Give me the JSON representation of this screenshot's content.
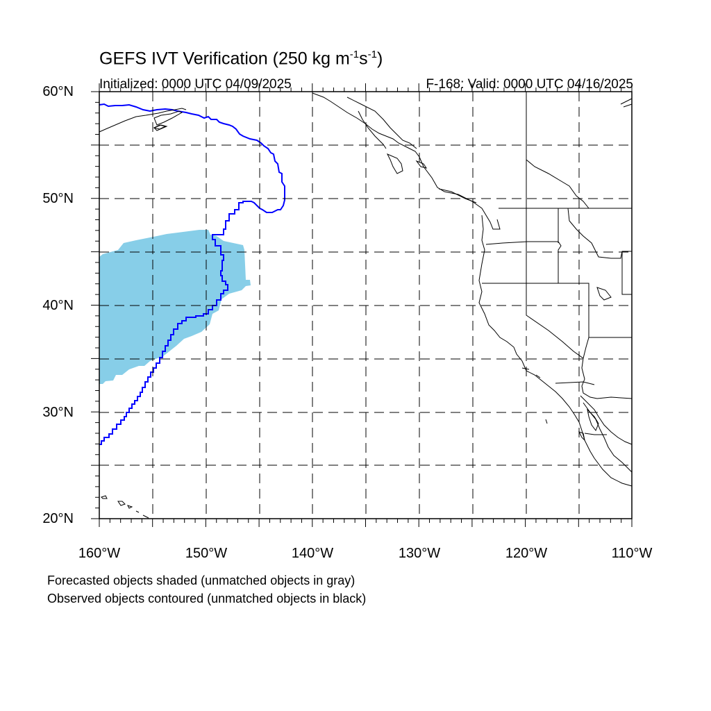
{
  "title": {
    "main": "GEFS IVT Verification (250 kg m",
    "exp1": "-1",
    "mid": "s",
    "exp2": "-1",
    "end": ")"
  },
  "initialized": "Initialized: 0000 UTC 04/09/2025",
  "valid": "F-168: Valid: 0000 UTC 04/16/2025",
  "lat_labels": [
    "60°N",
    "50°N",
    "40°N",
    "30°N",
    "20°N"
  ],
  "lon_labels": [
    "160°W",
    "150°W",
    "140°W",
    "130°W",
    "120°W",
    "110°W"
  ],
  "footnotes": [
    "Forecasted objects shaded (unmatched objects in gray)",
    "Observed objects contoured (unmatched objects in black)"
  ],
  "map_extent": {
    "lon": [
      -160,
      -110
    ],
    "lat": [
      20,
      60
    ]
  },
  "colors": {
    "forecast_object_fill": "#87cee8",
    "observed_object_contour": "#0000ff",
    "coastline": "#000000",
    "grid": "#000000"
  }
}
